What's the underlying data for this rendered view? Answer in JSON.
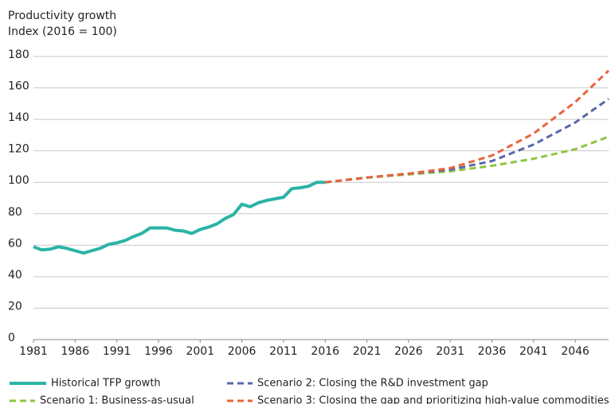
{
  "chart_data": {
    "type": "line",
    "title": "Productivity growth",
    "subtitle": "Index (2016 = 100)",
    "xlim": [
      1981,
      2050
    ],
    "xticks": [
      1981,
      1986,
      1991,
      1996,
      2001,
      2006,
      2011,
      2016,
      2021,
      2026,
      2031,
      2036,
      2041,
      2046
    ],
    "ylim": [
      0,
      180
    ],
    "yticks": [
      0,
      20,
      40,
      60,
      80,
      100,
      120,
      140,
      160,
      180
    ],
    "grid": true,
    "legend": "bottom",
    "series": [
      {
        "name": "Historical TFP growth",
        "color": "#2bb3a6",
        "dashed": false,
        "x": [
          1981,
          1982,
          1983,
          1984,
          1985,
          1986,
          1987,
          1988,
          1989,
          1990,
          1991,
          1992,
          1993,
          1994,
          1995,
          1996,
          1997,
          1998,
          1999,
          2000,
          2001,
          2002,
          2003,
          2004,
          2005,
          2006,
          2007,
          2008,
          2009,
          2010,
          2011,
          2012,
          2013,
          2014,
          2015,
          2016
        ],
        "values": [
          59,
          57,
          57.5,
          59,
          58,
          56.5,
          55,
          56.5,
          58,
          60.5,
          61.5,
          63,
          65.5,
          67.5,
          71,
          71,
          71,
          69.5,
          69,
          67.5,
          70,
          71.5,
          73.5,
          77,
          79.5,
          86,
          84.5,
          87,
          88.5,
          89.5,
          90.5,
          96,
          96.5,
          97.5,
          100,
          100
        ]
      },
      {
        "name": "Scenario 1: Business-as-usual",
        "color": "#8dc63f",
        "dashed": true,
        "x": [
          2016,
          2021,
          2026,
          2031,
          2036,
          2041,
          2046,
          2050
        ],
        "values": [
          100,
          103,
          105,
          107,
          110.5,
          115,
          121,
          129
        ]
      },
      {
        "name": "Scenario 2: Closing the R&D investment gap",
        "color": "#5868a8",
        "dashed": true,
        "x": [
          2016,
          2021,
          2026,
          2031,
          2036,
          2041,
          2046,
          2050
        ],
        "values": [
          100,
          103,
          105.5,
          108,
          113.5,
          124,
          138,
          153
        ]
      },
      {
        "name": "Scenario 3: Closing the gap and prioritizing high-value commodities",
        "color": "#e8643c",
        "dashed": true,
        "x": [
          2016,
          2021,
          2026,
          2031,
          2036,
          2041,
          2046,
          2050
        ],
        "values": [
          100,
          103,
          105.5,
          109,
          117,
          131,
          151,
          171
        ]
      }
    ]
  }
}
